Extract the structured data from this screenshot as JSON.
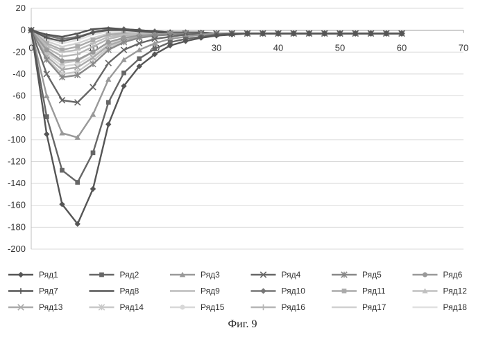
{
  "chart_data": {
    "type": "line",
    "title": "",
    "xlabel": "",
    "ylabel": "",
    "xlim": [
      0,
      70
    ],
    "ylim": [
      -200,
      20
    ],
    "x_ticks": [
      0,
      10,
      20,
      30,
      40,
      50,
      60,
      70
    ],
    "y_ticks": [
      20,
      0,
      -20,
      -40,
      -60,
      -80,
      -100,
      -120,
      -140,
      -160,
      -180,
      -200
    ],
    "grid": "horizontal",
    "legend_position": "bottom",
    "x": [
      0,
      2.5,
      5,
      7.5,
      10,
      12.5,
      15,
      17.5,
      20,
      22.5,
      25,
      27.5,
      30,
      32.5,
      35,
      37.5,
      40,
      42.5,
      45,
      47.5,
      50,
      52.5,
      55,
      57.5,
      60
    ],
    "series": [
      {
        "name": "Ряд1",
        "marker": "diamond",
        "color": "#555555",
        "values": [
          0,
          -95,
          -159,
          -177,
          -145,
          -86,
          -51,
          -33,
          -22,
          -14,
          -10,
          -7,
          -5,
          -4,
          -3,
          -3,
          -3,
          -3,
          -3,
          -3,
          -3,
          -3,
          -3,
          -3,
          -3
        ]
      },
      {
        "name": "Ряд2",
        "marker": "square",
        "color": "#666666",
        "values": [
          0,
          -79,
          -128,
          -139,
          -112,
          -66,
          -39,
          -26,
          -17,
          -11,
          -8,
          -6,
          -4,
          -3,
          -3,
          -3,
          -3,
          -3,
          -3,
          -3,
          -3,
          -3,
          -3,
          -3,
          -3
        ]
      },
      {
        "name": "Ряд3",
        "marker": "triangle",
        "color": "#999999",
        "values": [
          0,
          -60,
          -94,
          -98,
          -77,
          -45,
          -27,
          -18,
          -12,
          -8,
          -6,
          -4,
          -3,
          -3,
          -3,
          -3,
          -3,
          -3,
          -3,
          -3,
          -3,
          -3,
          -3,
          -3,
          -3
        ]
      },
      {
        "name": "Ряд4",
        "marker": "x",
        "color": "#666666",
        "values": [
          0,
          -40,
          -64,
          -66,
          -52,
          -30,
          -18,
          -12,
          -8,
          -6,
          -4,
          -3,
          -3,
          -3,
          -3,
          -3,
          -3,
          -3,
          -3,
          -3,
          -3,
          -3,
          -3,
          -3,
          -3
        ]
      },
      {
        "name": "Ряд5",
        "marker": "star",
        "color": "#888888",
        "values": [
          0,
          -27,
          -43,
          -41,
          -31,
          -18,
          -11,
          -7,
          -5,
          -4,
          -3,
          -3,
          -3,
          -3,
          -3,
          -3,
          -3,
          -3,
          -3,
          -3,
          -3,
          -3,
          -3,
          -3,
          -3
        ]
      },
      {
        "name": "Ряд6",
        "marker": "circle",
        "color": "#999999",
        "values": [
          0,
          -18,
          -28,
          -27,
          -20,
          -11,
          -7,
          -5,
          -4,
          -3,
          -3,
          -3,
          -3,
          -3,
          -3,
          -3,
          -3,
          -3,
          -3,
          -3,
          -3,
          -3,
          -3,
          -3,
          -3
        ]
      },
      {
        "name": "Ряд7",
        "marker": "plus",
        "color": "#555555",
        "values": [
          0,
          -7,
          -10,
          -7,
          -2,
          0,
          0,
          -1,
          -2,
          -2,
          -2,
          -3,
          -3,
          -3,
          -3,
          -3,
          -3,
          -3,
          -3,
          -3,
          -3,
          -3,
          -3,
          -3,
          -3
        ]
      },
      {
        "name": "Ряд8",
        "marker": "dash",
        "color": "#555555",
        "values": [
          0,
          -4,
          -6,
          -3,
          1,
          2,
          1,
          0,
          -1,
          -2,
          -2,
          -2,
          -3,
          -3,
          -3,
          -3,
          -3,
          -3,
          -3,
          -3,
          -3,
          -3,
          -3,
          -3,
          -3
        ]
      },
      {
        "name": "Ряд9",
        "marker": "dash",
        "color": "#bbbbbb",
        "values": [
          0,
          -14,
          -20,
          -18,
          -12,
          -6,
          -4,
          -3,
          -3,
          -3,
          -3,
          -3,
          -3,
          -3,
          -3,
          -3,
          -3,
          -3,
          -3,
          -3,
          -3,
          -3,
          -3,
          -3,
          -3
        ]
      },
      {
        "name": "Ряд10",
        "marker": "diamond",
        "color": "#777777",
        "values": [
          0,
          -5,
          -8,
          -6,
          -2,
          1,
          1,
          0,
          -1,
          -2,
          -2,
          -2,
          -3,
          -3,
          -3,
          -3,
          -3,
          -3,
          -3,
          -3,
          -3,
          -3,
          -3,
          -3,
          -3
        ]
      },
      {
        "name": "Ряд11",
        "marker": "square",
        "color": "#aaaaaa",
        "values": [
          0,
          -12,
          -18,
          -15,
          -9,
          -4,
          -3,
          -3,
          -3,
          -3,
          -3,
          -3,
          -3,
          -3,
          -3,
          -3,
          -3,
          -3,
          -3,
          -3,
          -3,
          -3,
          -3,
          -3,
          -3
        ]
      },
      {
        "name": "Ряд12",
        "marker": "triangle",
        "color": "#c0c0c0",
        "values": [
          0,
          -20,
          -30,
          -28,
          -20,
          -11,
          -7,
          -5,
          -4,
          -3,
          -3,
          -3,
          -3,
          -3,
          -3,
          -3,
          -3,
          -3,
          -3,
          -3,
          -3,
          -3,
          -3,
          -3,
          -3
        ]
      },
      {
        "name": "Ряд13",
        "marker": "x",
        "color": "#aaaaaa",
        "values": [
          0,
          -24,
          -36,
          -34,
          -25,
          -14,
          -9,
          -6,
          -4,
          -3,
          -3,
          -3,
          -3,
          -3,
          -3,
          -3,
          -3,
          -3,
          -3,
          -3,
          -3,
          -3,
          -3,
          -3,
          -3
        ]
      },
      {
        "name": "Ряд14",
        "marker": "star",
        "color": "#c8c8c8",
        "values": [
          0,
          -26,
          -40,
          -38,
          -28,
          -16,
          -10,
          -7,
          -5,
          -4,
          -3,
          -3,
          -3,
          -3,
          -3,
          -3,
          -3,
          -3,
          -3,
          -3,
          -3,
          -3,
          -3,
          -3,
          -3
        ]
      },
      {
        "name": "Ряд15",
        "marker": "circle",
        "color": "#d8d8d8",
        "values": [
          0,
          -22,
          -33,
          -31,
          -23,
          -13,
          -8,
          -6,
          -4,
          -3,
          -3,
          -3,
          -3,
          -3,
          -3,
          -3,
          -3,
          -3,
          -3,
          -3,
          -3,
          -3,
          -3,
          -3,
          -3
        ]
      },
      {
        "name": "Ряд16",
        "marker": "plus",
        "color": "#b5b5b5",
        "values": [
          0,
          -16,
          -24,
          -22,
          -15,
          -8,
          -5,
          -4,
          -3,
          -3,
          -3,
          -3,
          -3,
          -3,
          -3,
          -3,
          -3,
          -3,
          -3,
          -3,
          -3,
          -3,
          -3,
          -3,
          -3
        ]
      },
      {
        "name": "Ряд17",
        "marker": "dash",
        "color": "#d0d0d0",
        "values": [
          0,
          -10,
          -15,
          -12,
          -7,
          -3,
          -2,
          -2,
          -2,
          -3,
          -3,
          -3,
          -3,
          -3,
          -3,
          -3,
          -3,
          -3,
          -3,
          -3,
          -3,
          -3,
          -3,
          -3,
          -3
        ]
      },
      {
        "name": "Ряд18",
        "marker": "dash",
        "color": "#e0e0e0",
        "values": [
          0,
          -8,
          -12,
          -9,
          -4,
          -1,
          -1,
          -2,
          -2,
          -3,
          -3,
          -3,
          -3,
          -3,
          -3,
          -3,
          -3,
          -3,
          -3,
          -3,
          -3,
          -3,
          -3,
          -3,
          -3
        ]
      }
    ]
  },
  "caption": "Фиг. 9"
}
